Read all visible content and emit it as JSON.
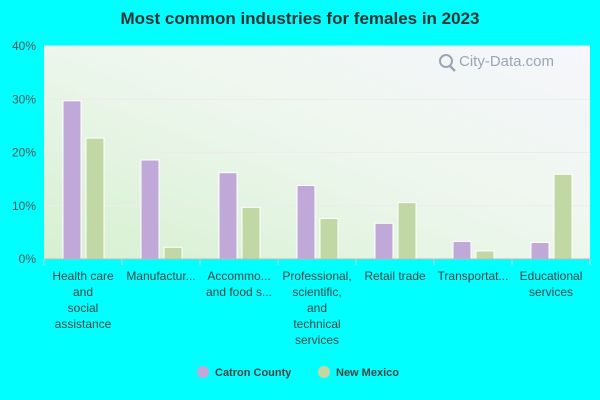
{
  "chart_data": {
    "type": "bar",
    "title": "Most common industries for females in 2023",
    "categories": [
      [
        "Health care",
        "and",
        "social",
        "assistance"
      ],
      [
        "Manufactur..."
      ],
      [
        "Accommo...",
        "and food s..."
      ],
      [
        "Professional,",
        "scientific,",
        "and",
        "technical",
        "services"
      ],
      [
        "Retail trade"
      ],
      [
        "Transportat..."
      ],
      [
        "Educational",
        "services"
      ]
    ],
    "series": [
      {
        "name": "Catron County",
        "color": "#c0a8d8",
        "values": [
          29.7,
          18.6,
          16.2,
          13.8,
          6.7,
          3.3,
          3.1
        ]
      },
      {
        "name": "New Mexico",
        "color": "#c2d8a4",
        "values": [
          22.7,
          2.2,
          9.7,
          7.6,
          10.6,
          1.5,
          15.9
        ]
      }
    ],
    "ylim": [
      0,
      40
    ],
    "yticks": [
      0,
      10,
      20,
      30,
      40
    ],
    "ytick_labels": [
      "0%",
      "10%",
      "20%",
      "30%",
      "40%"
    ],
    "grid": true,
    "legend_position": "bottom"
  },
  "watermark": {
    "text": "City-Data.com",
    "icon": "magnifier-icon"
  }
}
